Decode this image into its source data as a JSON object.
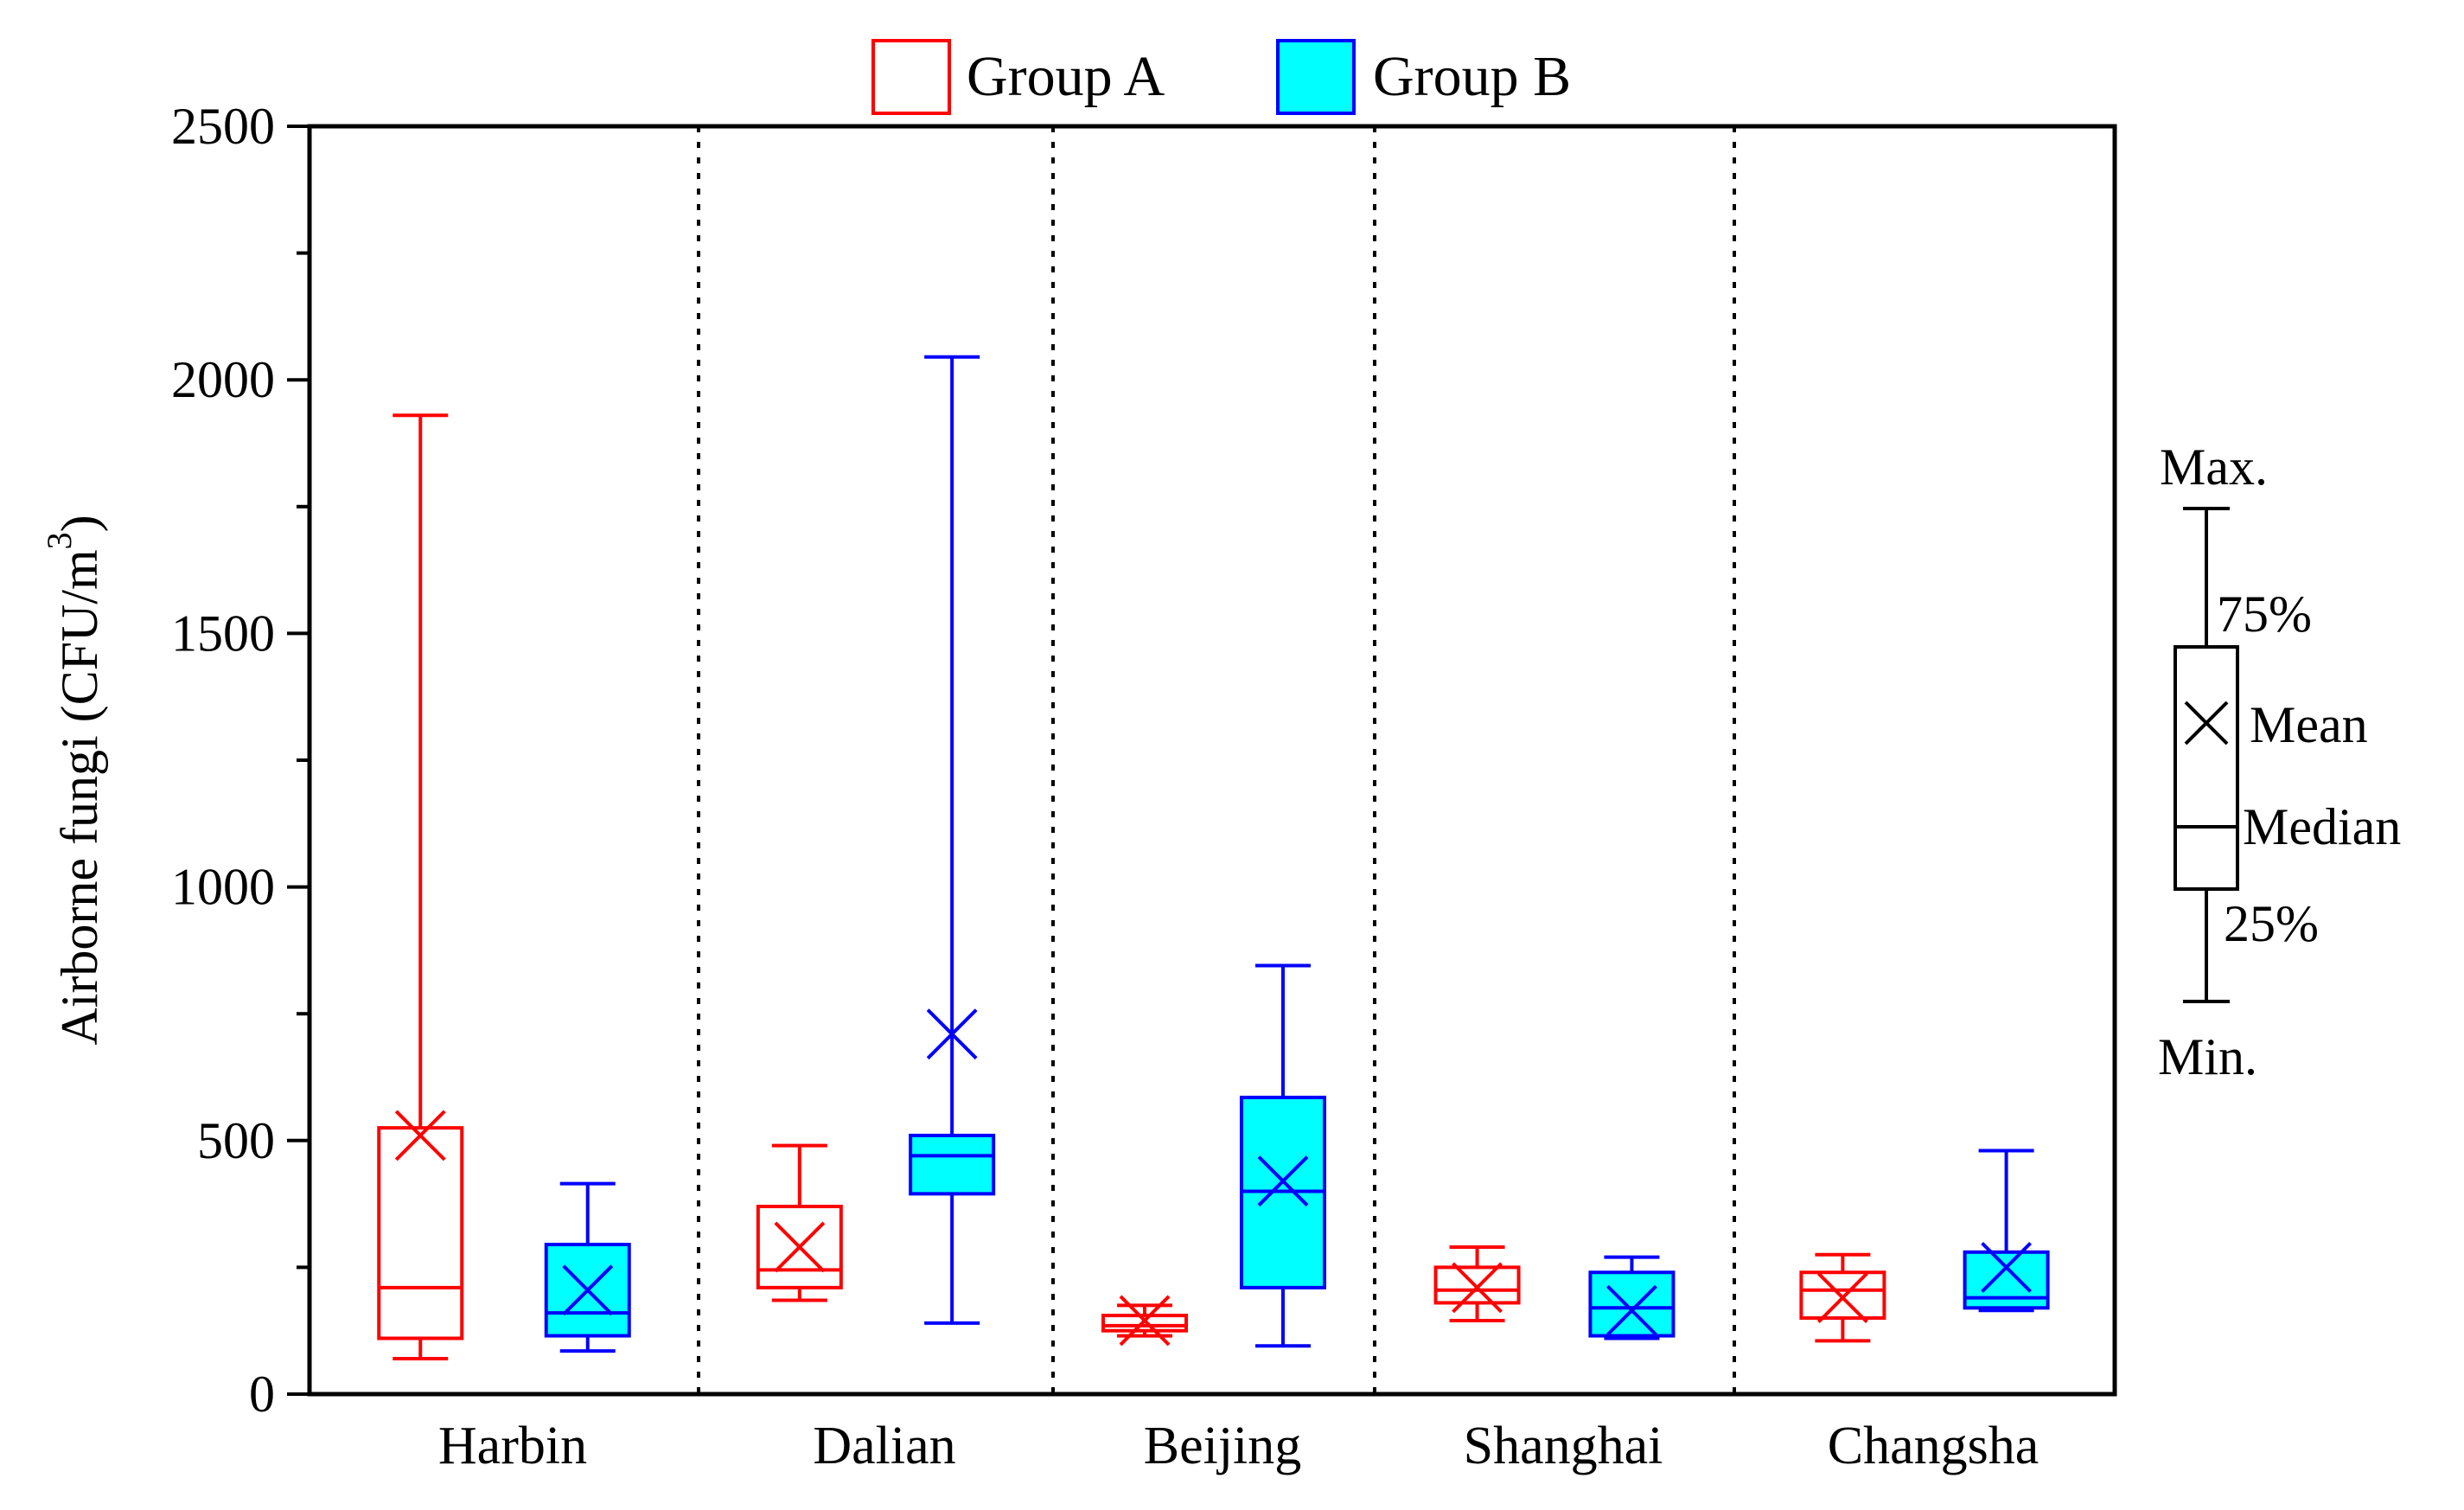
{
  "chart_data": {
    "type": "boxplot",
    "title": "",
    "xlabel": "",
    "ylabel": "Airborne fungi (CFU/m",
    "ylabel_superscript": "3",
    "ylabel_close": ")",
    "ylim": [
      0,
      2500
    ],
    "yticks": [
      0,
      500,
      1000,
      1500,
      2000,
      2500
    ],
    "ytick_labels": [
      "0",
      "500",
      "1000",
      "1500",
      "2000",
      "2500"
    ],
    "categories": [
      "Harbin",
      "Dalian",
      "Beijing",
      "Shanghai",
      "Changsha"
    ],
    "legend": {
      "position": "top",
      "entries": [
        {
          "name": "Group A",
          "color": "#ff0000",
          "fill": "none"
        },
        {
          "name": "Group B",
          "color": "#0000ff",
          "fill": "#00ffff"
        }
      ]
    },
    "series": [
      {
        "name": "Group A",
        "color": "#ff0000",
        "fill": "none",
        "boxes": [
          {
            "min": 70,
            "q1": 110,
            "median": 210,
            "q3": 525,
            "max": 1930,
            "mean": 510
          },
          {
            "min": 185,
            "q1": 210,
            "median": 245,
            "q3": 370,
            "max": 490,
            "mean": 290
          },
          {
            "min": 115,
            "q1": 125,
            "median": 135,
            "q3": 155,
            "max": 175,
            "mean": 145
          },
          {
            "min": 145,
            "q1": 180,
            "median": 205,
            "q3": 250,
            "max": 290,
            "mean": 210
          },
          {
            "min": 105,
            "q1": 150,
            "median": 205,
            "q3": 240,
            "max": 275,
            "mean": 190
          }
        ]
      },
      {
        "name": "Group B",
        "color": "#0000ff",
        "fill": "#00ffff",
        "boxes": [
          {
            "min": 85,
            "q1": 115,
            "median": 160,
            "q3": 295,
            "max": 415,
            "mean": 205
          },
          {
            "min": 140,
            "q1": 395,
            "median": 470,
            "q3": 510,
            "max": 2045,
            "mean": 710
          },
          {
            "min": 95,
            "q1": 210,
            "median": 400,
            "q3": 585,
            "max": 845,
            "mean": 420
          },
          {
            "min": 110,
            "q1": 115,
            "median": 170,
            "q3": 240,
            "max": 270,
            "mean": 165
          },
          {
            "min": 165,
            "q1": 170,
            "median": 190,
            "q3": 280,
            "max": 480,
            "mean": 250
          }
        ]
      }
    ],
    "key": {
      "max_label": "Max.",
      "q3_label": "75%",
      "mean_label": "Mean",
      "median_label": "Median",
      "q1_label": "25%",
      "min_label": "Min."
    }
  }
}
